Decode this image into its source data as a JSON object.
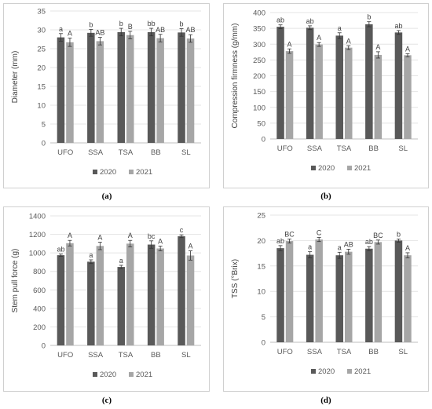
{
  "chart_data": [
    {
      "type": "bar",
      "panel_label": "(a)",
      "categories": [
        "UFO",
        "SSA",
        "TSA",
        "BB",
        "SL"
      ],
      "ylabel": "Diameter (mm)",
      "ylim": [
        0,
        35
      ],
      "yticks": [
        0,
        5,
        10,
        15,
        20,
        25,
        30,
        35
      ],
      "legend_position": "bottom",
      "series": [
        {
          "name": "2020",
          "color": "#595959",
          "values": [
            28.0,
            29.2,
            29.4,
            29.4,
            29.3
          ],
          "errors": [
            1.0,
            0.9,
            1.0,
            1.0,
            1.0
          ],
          "letters": [
            "a",
            "b",
            "b",
            "bb",
            "b"
          ]
        },
        {
          "name": "2021",
          "color": "#a6a6a6",
          "values": [
            26.7,
            27.0,
            28.6,
            27.8,
            27.7
          ],
          "errors": [
            1.1,
            1.0,
            1.0,
            1.0,
            1.0
          ],
          "letters": [
            "A",
            "AB",
            "B",
            "AB",
            "AB"
          ]
        }
      ]
    },
    {
      "type": "bar",
      "panel_label": "(b)",
      "categories": [
        "UFO",
        "SSA",
        "TSA",
        "BB",
        "SL"
      ],
      "ylabel": "Compression firmness (g/mm)",
      "ylim": [
        0,
        400
      ],
      "yticks": [
        0,
        50,
        100,
        150,
        200,
        250,
        300,
        350,
        400
      ],
      "legend_position": "bottom",
      "series": [
        {
          "name": "2020",
          "color": "#595959",
          "values": [
            355,
            352,
            327,
            363,
            337
          ],
          "errors": [
            6,
            6,
            9,
            8,
            6
          ],
          "letters": [
            "ab",
            "ab",
            "a",
            "b",
            "ab"
          ]
        },
        {
          "name": "2021",
          "color": "#a6a6a6",
          "values": [
            278,
            299,
            289,
            266,
            265
          ],
          "errors": [
            7,
            6,
            6,
            10,
            5
          ],
          "letters": [
            "A",
            "A",
            "A",
            "A",
            "A"
          ]
        }
      ]
    },
    {
      "type": "bar",
      "panel_label": "(c)",
      "categories": [
        "UFO",
        "SSA",
        "TSA",
        "BB",
        "SL"
      ],
      "ylabel": "Stem pull force (g)",
      "ylim": [
        0,
        1400
      ],
      "yticks": [
        0,
        200,
        400,
        600,
        800,
        1000,
        1200,
        1400
      ],
      "legend_position": "bottom",
      "series": [
        {
          "name": "2020",
          "color": "#595959",
          "values": [
            975,
            905,
            848,
            1090,
            1180
          ],
          "errors": [
            12,
            20,
            18,
            40,
            15
          ],
          "letters": [
            "ab",
            "a",
            "a",
            "bc",
            "c"
          ]
        },
        {
          "name": "2021",
          "color": "#a6a6a6",
          "values": [
            1105,
            1075,
            1100,
            1048,
            972
          ],
          "errors": [
            30,
            40,
            35,
            25,
            50
          ],
          "letters": [
            "A",
            "A",
            "A",
            "A",
            "A"
          ]
        }
      ]
    },
    {
      "type": "bar",
      "panel_label": "(d)",
      "categories": [
        "UFO",
        "SSA",
        "TSA",
        "BB",
        "SL"
      ],
      "ylabel": "TSS (°Brix)",
      "ylim": [
        0,
        25
      ],
      "yticks": [
        0,
        5,
        10,
        15,
        20,
        25
      ],
      "legend_position": "bottom",
      "series": [
        {
          "name": "2020",
          "color": "#595959",
          "values": [
            18.5,
            17.2,
            17.1,
            18.4,
            20.0
          ],
          "errors": [
            0.5,
            0.6,
            0.6,
            0.4,
            0.3
          ],
          "letters": [
            "ab",
            "a",
            "a",
            "ab",
            "b"
          ]
        },
        {
          "name": "2021",
          "color": "#a6a6a6",
          "values": [
            19.9,
            20.2,
            17.8,
            19.7,
            17.1
          ],
          "errors": [
            0.4,
            0.4,
            0.5,
            0.4,
            0.5
          ],
          "letters": [
            "BC",
            "C",
            "AB",
            "BC",
            "A"
          ]
        }
      ]
    }
  ]
}
